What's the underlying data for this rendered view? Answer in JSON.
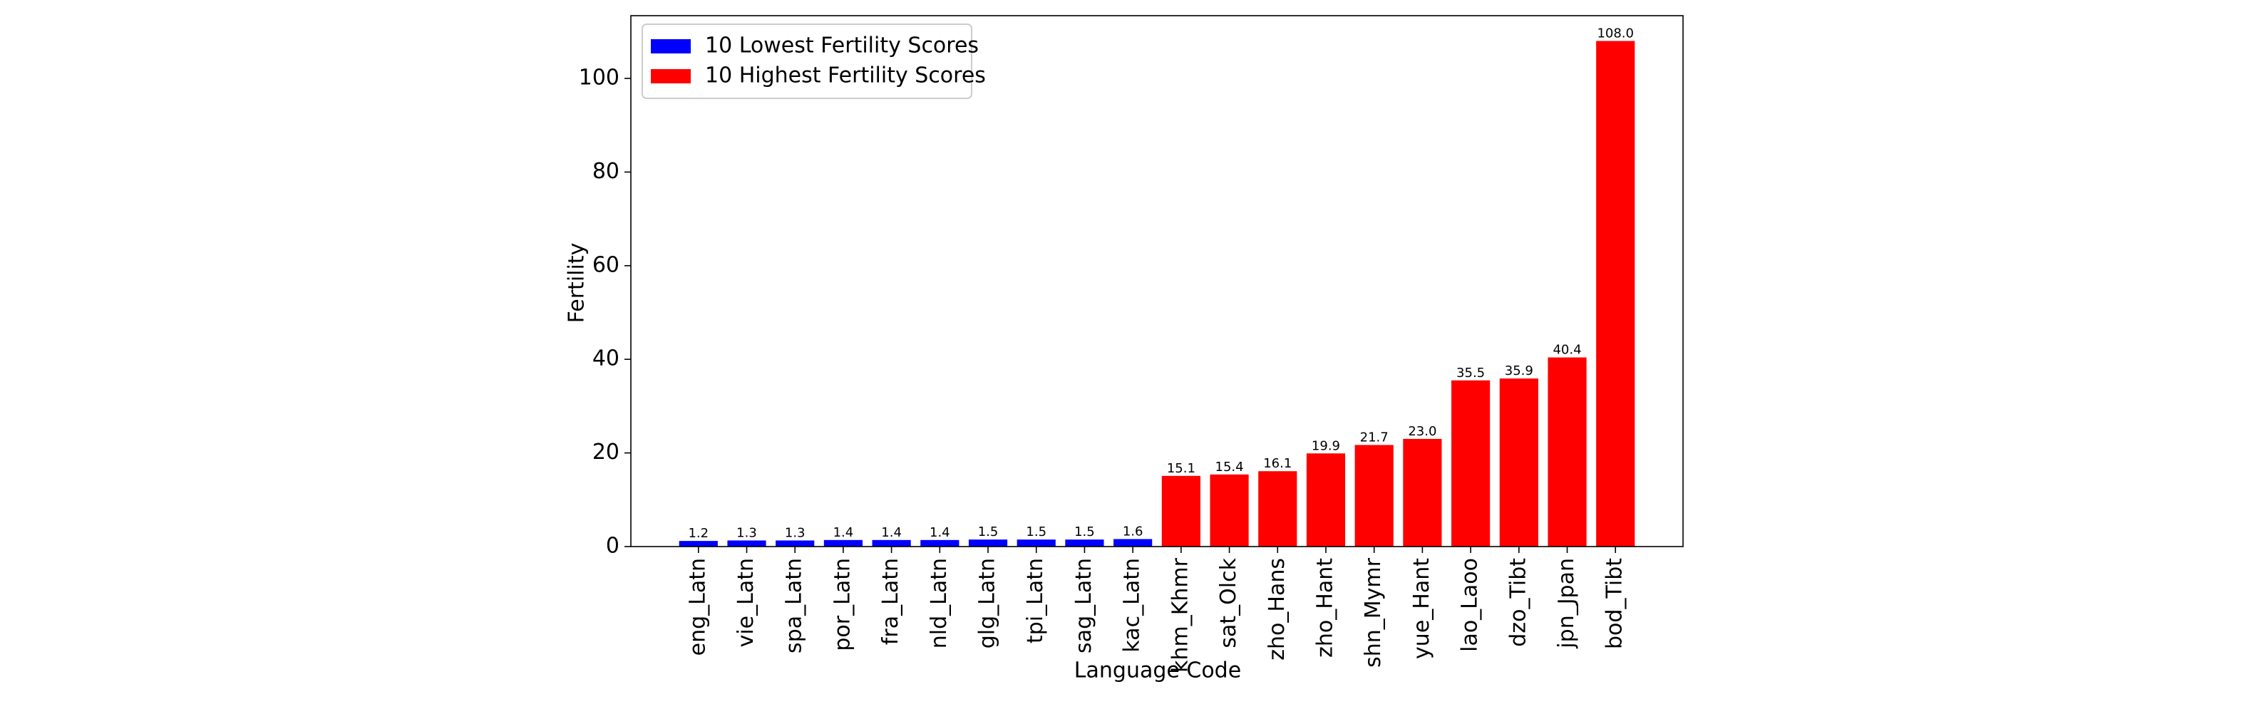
{
  "chart_data": {
    "type": "bar",
    "xlabel": "Language Code",
    "ylabel": "Fertility",
    "categories": [
      "eng_Latn",
      "vie_Latn",
      "spa_Latn",
      "por_Latn",
      "fra_Latn",
      "nld_Latn",
      "glg_Latn",
      "tpi_Latn",
      "sag_Latn",
      "kac_Latn",
      "khm_Khmr",
      "sat_Olck",
      "zho_Hans",
      "zho_Hant",
      "shn_Mymr",
      "yue_Hant",
      "lao_Laoo",
      "dzo_Tibt",
      "jpn_Jpan",
      "bod_Tibt"
    ],
    "series": [
      {
        "name": "10 Lowest Fertility Scores",
        "color": "#0000ff",
        "values": [
          1.2,
          1.3,
          1.3,
          1.4,
          1.4,
          1.4,
          1.5,
          1.5,
          1.5,
          1.6,
          null,
          null,
          null,
          null,
          null,
          null,
          null,
          null,
          null,
          null
        ],
        "value_labels": [
          "1.2",
          "1.3",
          "1.3",
          "1.4",
          "1.4",
          "1.4",
          "1.5",
          "1.5",
          "1.5",
          "1.6",
          null,
          null,
          null,
          null,
          null,
          null,
          null,
          null,
          null,
          null
        ]
      },
      {
        "name": "10 Highest Fertility Scores",
        "color": "#ff0000",
        "values": [
          null,
          null,
          null,
          null,
          null,
          null,
          null,
          null,
          null,
          null,
          15.1,
          15.4,
          16.1,
          19.9,
          21.7,
          23.0,
          35.5,
          35.9,
          40.4,
          108.0
        ],
        "value_labels": [
          null,
          null,
          null,
          null,
          null,
          null,
          null,
          null,
          null,
          null,
          "15.1",
          "15.4",
          "16.1",
          "19.9",
          "21.7",
          "23.0",
          "35.5",
          "35.9",
          "40.4",
          "108.0"
        ]
      }
    ],
    "ylim": [
      0,
      113.4
    ],
    "yticks": [
      0,
      20,
      40,
      60,
      80,
      100
    ],
    "grid": false,
    "legend": "upper left"
  }
}
